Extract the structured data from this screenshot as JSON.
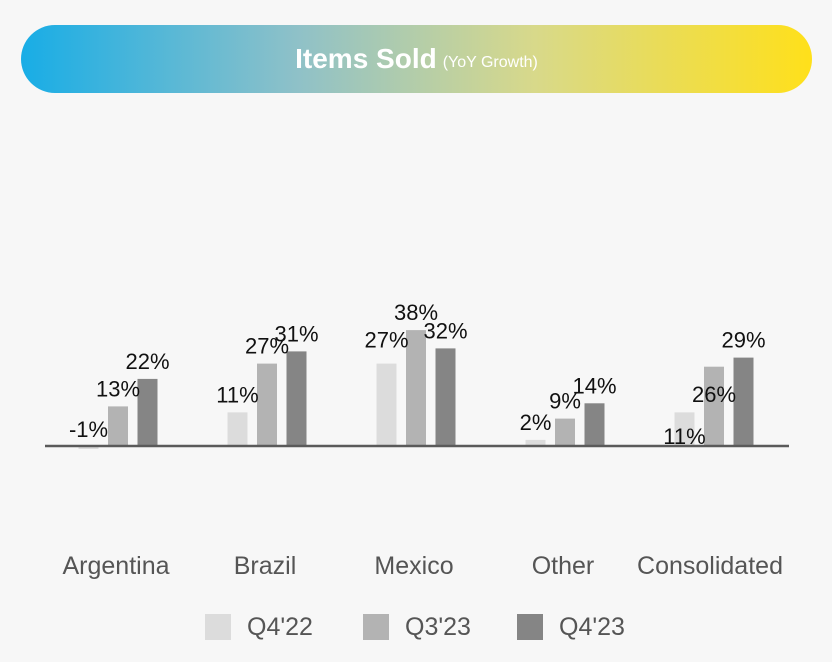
{
  "header": {
    "title": "Items Sold",
    "subtitle": "(YoY Growth)"
  },
  "colors": {
    "Q4'22": "#dcdcdc",
    "Q3'23": "#b3b3b3",
    "Q4'23": "#858585",
    "axis": "#5a5a5a",
    "label": "#111111",
    "category": "#555555"
  },
  "chart_data": {
    "type": "bar",
    "categories": [
      "Argentina",
      "Brazil",
      "Mexico",
      "Other",
      "Consolidated"
    ],
    "series": [
      {
        "name": "Q4'22",
        "values": [
          -1,
          11,
          27,
          2,
          11
        ],
        "labels": [
          "-1%",
          "11%",
          "27%",
          "2%",
          "11%"
        ]
      },
      {
        "name": "Q3'23",
        "values": [
          13,
          27,
          38,
          9,
          26
        ],
        "labels": [
          "13%",
          "27%",
          "38%",
          "9%",
          "26%"
        ]
      },
      {
        "name": "Q4'23",
        "values": [
          22,
          31,
          32,
          14,
          29
        ],
        "labels": [
          "22%",
          "31%",
          "32%",
          "14%",
          "29%"
        ]
      }
    ],
    "title": "Items Sold",
    "subtitle": "(YoY Growth)",
    "ylim": [
      -3,
      40
    ],
    "grid": false,
    "legend_position": "bottom"
  }
}
